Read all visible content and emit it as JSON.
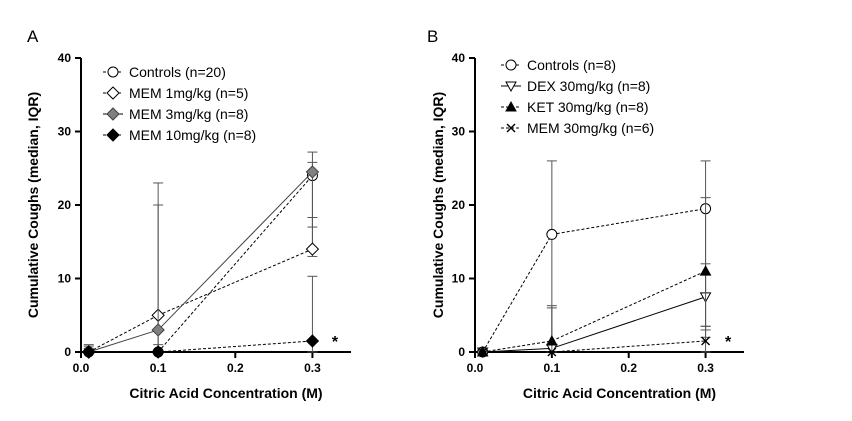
{
  "chart_data": [
    {
      "panel_label": "A",
      "type": "line",
      "xlabel": "Citric Acid Concentration (M)",
      "ylabel": "Cumulative Coughs (median, IQR)",
      "xlim": [
        0.0,
        0.35
      ],
      "ylim": [
        0,
        40
      ],
      "x_ticks": [
        "0.0",
        "0.1",
        "0.2",
        "0.3"
      ],
      "y_ticks": [
        "0",
        "10",
        "20",
        "30",
        "40"
      ],
      "grid": false,
      "legend_position": "top-left",
      "series": [
        {
          "name": "Controls (n=20)",
          "marker": "circle-open",
          "line": "dashed",
          "color": "#000000",
          "points": [
            {
              "x": 0.01,
              "y": 0,
              "err_low": 0,
              "err_high": 1
            },
            {
              "x": 0.1,
              "y": 0,
              "err_low": 0,
              "err_high": 1
            },
            {
              "x": 0.3,
              "y": 24,
              "err_low": 14,
              "err_high": 27.2
            }
          ]
        },
        {
          "name": "MEM 1mg/kg (n=5)",
          "marker": "diamond-open",
          "line": "dashed",
          "color": "#000000",
          "points": [
            {
              "x": 0.01,
              "y": 0,
              "err_low": 0,
              "err_high": 0.8
            },
            {
              "x": 0.1,
              "y": 5,
              "err_low": 0,
              "err_high": 23
            },
            {
              "x": 0.3,
              "y": 14,
              "err_low": 13,
              "err_high": 18.3
            }
          ]
        },
        {
          "name": "MEM 3mg/kg (n=8)",
          "marker": "diamond-filled-gray",
          "line": "solid",
          "color": "#808080",
          "points": [
            {
              "x": 0.01,
              "y": 0,
              "err_low": 0,
              "err_high": 0.5
            },
            {
              "x": 0.1,
              "y": 3,
              "err_low": 0,
              "err_high": 20
            },
            {
              "x": 0.3,
              "y": 24.5,
              "err_low": 17,
              "err_high": 25.8
            }
          ]
        },
        {
          "name": "MEM 10mg/kg (n=8)",
          "marker": "diamond-filled-black",
          "line": "dashed",
          "color": "#000000",
          "points": [
            {
              "x": 0.01,
              "y": 0,
              "err_low": 0,
              "err_high": 0
            },
            {
              "x": 0.1,
              "y": 0,
              "err_low": 0,
              "err_high": 0
            },
            {
              "x": 0.3,
              "y": 1.5,
              "err_low": 0,
              "err_high": 10.3
            }
          ]
        }
      ],
      "annotations": [
        {
          "text": "*",
          "x": 0.32,
          "y": 1.5
        }
      ]
    },
    {
      "panel_label": "B",
      "type": "line",
      "xlabel": "Citric Acid Concentration (M)",
      "ylabel": "Cumulative Coughs (median, IQR)",
      "xlim": [
        0.0,
        0.35
      ],
      "ylim": [
        0,
        40
      ],
      "x_ticks": [
        "0.0",
        "0.1",
        "0.2",
        "0.3"
      ],
      "y_ticks": [
        "0",
        "10",
        "20",
        "30",
        "40"
      ],
      "grid": false,
      "legend_position": "top-left",
      "series": [
        {
          "name": "Controls (n=8)",
          "marker": "circle-open",
          "line": "dashed",
          "color": "#000000",
          "points": [
            {
              "x": 0.01,
              "y": 0,
              "err_low": 0,
              "err_high": 0.5
            },
            {
              "x": 0.1,
              "y": 16,
              "err_low": 0,
              "err_high": 26
            },
            {
              "x": 0.3,
              "y": 19.5,
              "err_low": 3,
              "err_high": 26
            }
          ]
        },
        {
          "name": "DEX 30mg/kg (n=8)",
          "marker": "triangle-down-open",
          "line": "solid",
          "color": "#000000",
          "points": [
            {
              "x": 0.01,
              "y": 0,
              "err_low": 0,
              "err_high": 0.5
            },
            {
              "x": 0.1,
              "y": 0.5,
              "err_low": 0,
              "err_high": 6
            },
            {
              "x": 0.3,
              "y": 7.5,
              "err_low": 2,
              "err_high": 21
            }
          ]
        },
        {
          "name": "KET 30mg/kg (n=8)",
          "marker": "triangle-up-filled",
          "line": "dashed",
          "color": "#000000",
          "points": [
            {
              "x": 0.01,
              "y": 0,
              "err_low": 0,
              "err_high": 0.5
            },
            {
              "x": 0.1,
              "y": 1.5,
              "err_low": 0,
              "err_high": 6.3
            },
            {
              "x": 0.3,
              "y": 11,
              "err_low": 3.5,
              "err_high": 12
            }
          ]
        },
        {
          "name": "MEM 30mg/kg (n=6)",
          "marker": "x",
          "line": "dashed",
          "color": "#000000",
          "points": [
            {
              "x": 0.01,
              "y": 0,
              "err_low": 0,
              "err_high": 0
            },
            {
              "x": 0.1,
              "y": 0,
              "err_low": 0,
              "err_high": 0
            },
            {
              "x": 0.3,
              "y": 1.5,
              "err_low": 0,
              "err_high": 3.5
            }
          ]
        }
      ],
      "annotations": [
        {
          "text": "*",
          "x": 0.32,
          "y": 1.5
        }
      ]
    }
  ]
}
